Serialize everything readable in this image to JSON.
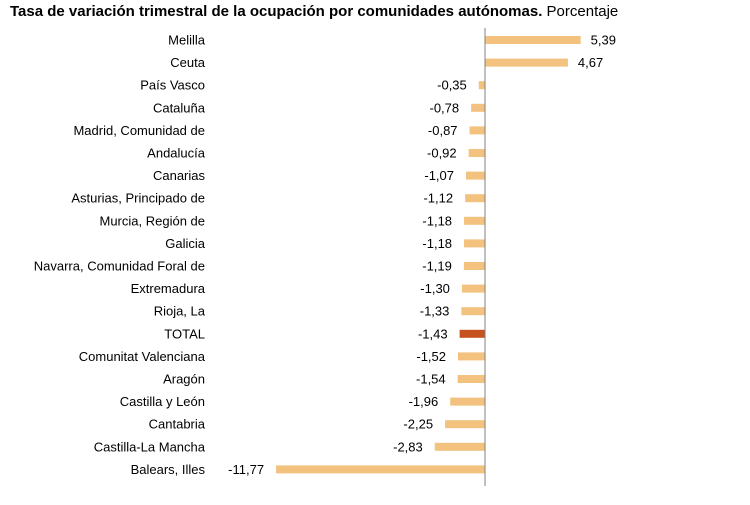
{
  "chart_data": {
    "type": "bar",
    "orientation": "horizontal",
    "title": "Tasa de variación trimestral de la ocupación por comunidades autónomas.",
    "subtitle": "Porcentaje",
    "categories": [
      "Melilla",
      "Ceuta",
      "País Vasco",
      "Cataluña",
      "Madrid, Comunidad de",
      "Andalucía",
      "Canarias",
      "Asturias, Principado de",
      "Murcia, Región de",
      "Galicia",
      "Navarra, Comunidad Foral de",
      "Extremadura",
      "Rioja, La",
      "TOTAL",
      "Comunitat Valenciana",
      "Aragón",
      "Castilla y León",
      "Cantabria",
      "Castilla-La Mancha",
      "Balears, Illes"
    ],
    "values": [
      5.39,
      4.67,
      -0.35,
      -0.78,
      -0.87,
      -0.92,
      -1.07,
      -1.12,
      -1.18,
      -1.18,
      -1.19,
      -1.3,
      -1.33,
      -1.43,
      -1.52,
      -1.54,
      -1.96,
      -2.25,
      -2.83,
      -11.77
    ],
    "labels": [
      "5,39",
      "4,67",
      "-0,35",
      "-0,78",
      "-0,87",
      "-0,92",
      "-1,07",
      "-1,12",
      "-1,18",
      "-1,18",
      "-1,19",
      "-1,30",
      "-1,33",
      "-1,43",
      "-1,52",
      "-1,54",
      "-1,96",
      "-2,25",
      "-2,83",
      "-11,77"
    ],
    "highlight_category": "TOTAL",
    "colors": {
      "bar": "#f2c27e",
      "highlight": "#c6521f",
      "axis": "#808080"
    },
    "xlabel": "",
    "ylabel": "",
    "grid": false,
    "legend": "none"
  }
}
